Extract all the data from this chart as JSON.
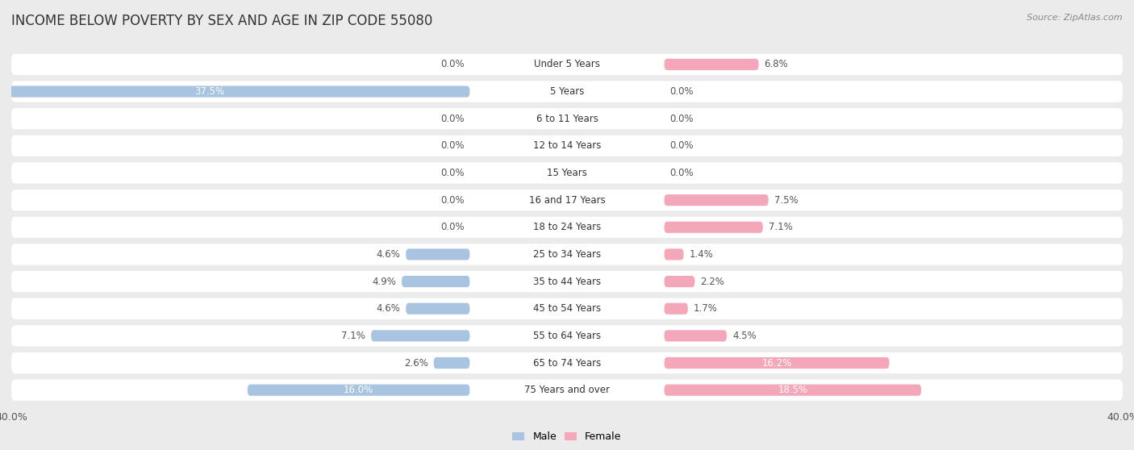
{
  "title": "INCOME BELOW POVERTY BY SEX AND AGE IN ZIP CODE 55080",
  "source": "Source: ZipAtlas.com",
  "categories": [
    "Under 5 Years",
    "5 Years",
    "6 to 11 Years",
    "12 to 14 Years",
    "15 Years",
    "16 and 17 Years",
    "18 to 24 Years",
    "25 to 34 Years",
    "35 to 44 Years",
    "45 to 54 Years",
    "55 to 64 Years",
    "65 to 74 Years",
    "75 Years and over"
  ],
  "male": [
    0.0,
    37.5,
    0.0,
    0.0,
    0.0,
    0.0,
    0.0,
    4.6,
    4.9,
    4.6,
    7.1,
    2.6,
    16.0
  ],
  "female": [
    6.8,
    0.0,
    0.0,
    0.0,
    0.0,
    7.5,
    7.1,
    1.4,
    2.2,
    1.7,
    4.5,
    16.2,
    18.5
  ],
  "male_color": "#a8c4e0",
  "female_color": "#f4a7b9",
  "background_color": "#ebebeb",
  "bar_background": "#ffffff",
  "xlim": 40.0,
  "label_fontsize": 8.5,
  "title_fontsize": 12,
  "legend_fontsize": 9,
  "value_fontsize": 8.5
}
